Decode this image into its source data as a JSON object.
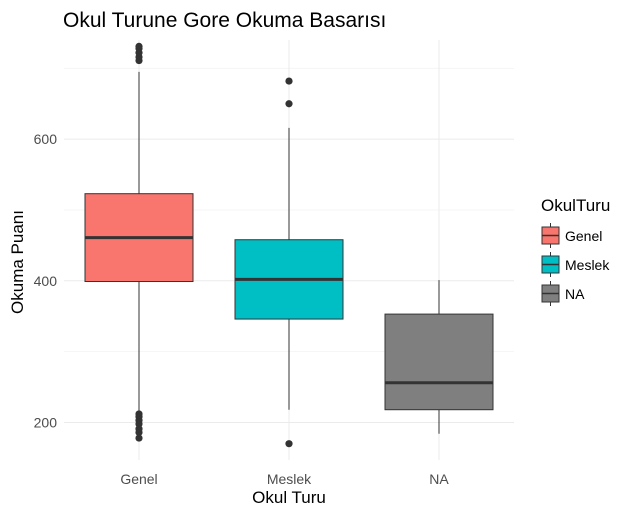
{
  "chart_data": {
    "type": "boxplot",
    "title": "Okul Turune Gore Okuma Basarısı",
    "xlabel": "Okul Turu",
    "ylabel": "Okuma Puanı",
    "categories": [
      "Genel",
      "Meslek",
      "NA"
    ],
    "ylim": [
      147,
      740
    ],
    "yticks": [
      200,
      400,
      600
    ],
    "grid": true,
    "legend": {
      "title": "OkulTuru",
      "placement": "right",
      "entries": [
        "Genel",
        "Meslek",
        "NA"
      ]
    },
    "boxes": [
      {
        "category": "Genel",
        "color": "#F8766D",
        "min": 214,
        "q1": 399,
        "median": 461,
        "q3": 523,
        "max": 695,
        "outliers": [
          711,
          716,
          722,
          728,
          731,
          212,
          208,
          203,
          198,
          191,
          186,
          178
        ]
      },
      {
        "category": "Meslek",
        "color": "#00BFC4",
        "min": 218,
        "q1": 346,
        "median": 402,
        "q3": 458,
        "max": 616,
        "outliers": [
          682,
          650,
          170
        ]
      },
      {
        "category": "NA",
        "color": "#7F7F7F",
        "min": 184,
        "q1": 218,
        "median": 256,
        "q3": 353,
        "max": 401,
        "outliers": []
      }
    ]
  }
}
